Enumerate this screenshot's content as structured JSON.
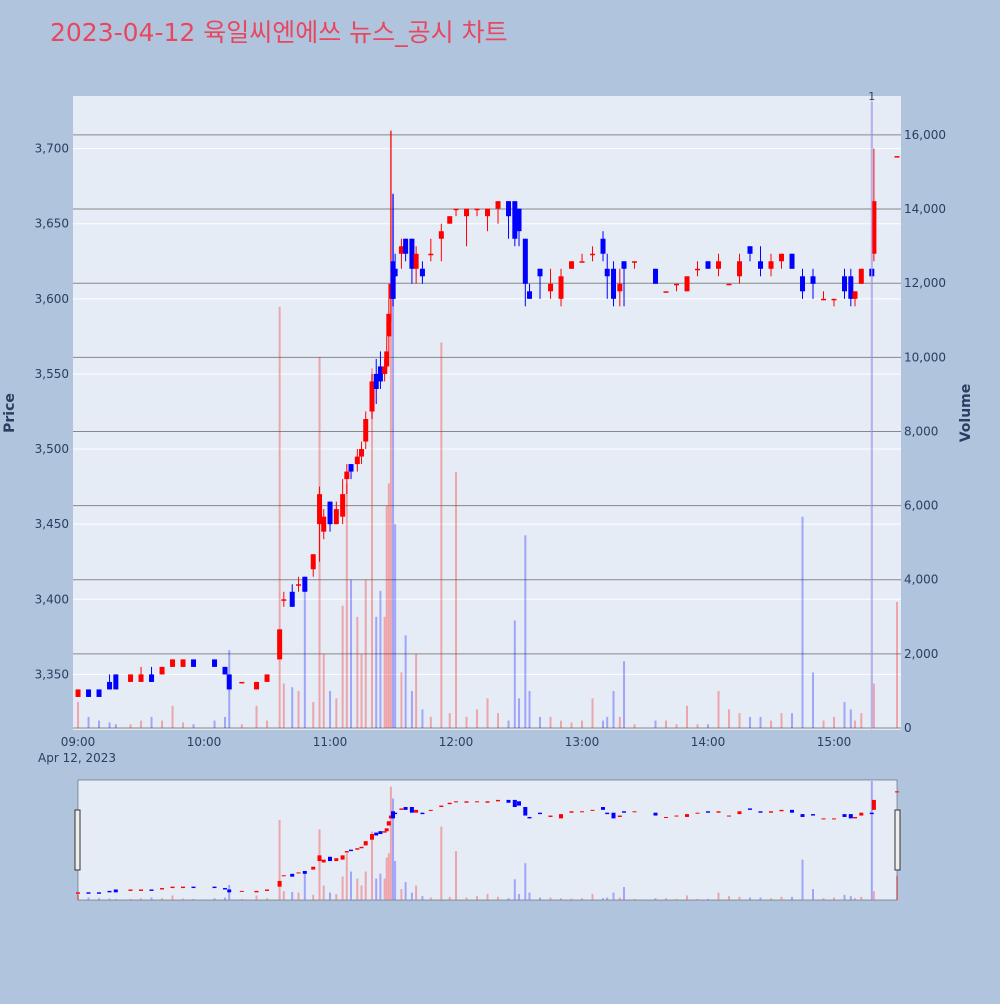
{
  "chart_data": {
    "type": "candlestick",
    "title": "2023-04-12 육일씨엔에쓰 뉴스_공시 차트",
    "y_label": "Price",
    "y2_label": "Volume",
    "x_date_label": "Apr 12, 2023",
    "increasing_color": "#ff0000",
    "decreasing_color": "#0000ff",
    "xlim": [
      "2023-04-12 08:57:36",
      "2023-04-12 15:31:54"
    ],
    "xticks": [
      {
        "value": "2023-04-12 09:00",
        "label": "09:00"
      },
      {
        "value": "2023-04-12 10:00",
        "label": "10:00"
      },
      {
        "value": "2023-04-12 11:00",
        "label": "11:00"
      },
      {
        "value": "2023-04-12 12:00",
        "label": "12:00"
      },
      {
        "value": "2023-04-12 13:00",
        "label": "13:00"
      },
      {
        "value": "2023-04-12 14:00",
        "label": "14:00"
      },
      {
        "value": "2023-04-12 15:00",
        "label": "15:00"
      }
    ],
    "ylim": [
      3313,
      3735
    ],
    "yticks": [
      {
        "value": 3350,
        "label": "3,350"
      },
      {
        "value": 3400,
        "label": "3,400"
      },
      {
        "value": 3450,
        "label": "3,450"
      },
      {
        "value": 3500,
        "label": "3,500"
      },
      {
        "value": 3550,
        "label": "3,550"
      },
      {
        "value": 3600,
        "label": "3,600"
      },
      {
        "value": 3650,
        "label": "3,650"
      },
      {
        "value": 3700,
        "label": "3,700"
      }
    ],
    "y2lim": [
      -54,
      17050
    ],
    "y2ticks": [
      0,
      {
        "value": 2000,
        "label": "2,000"
      },
      {
        "value": 4000,
        "label": "4,000"
      },
      {
        "value": 6000,
        "label": "6,000"
      },
      {
        "value": 8000,
        "label": "8,000"
      },
      {
        "value": 10000,
        "label": "10,000"
      },
      {
        "value": 12000,
        "label": "12,000"
      },
      {
        "value": 14000,
        "label": "14,000"
      },
      {
        "value": 16000,
        "label": "16,000"
      }
    ],
    "annotations": [
      {
        "x": "2023-04-12 15:18",
        "text": "1"
      }
    ],
    "x": [
      "2023-04-12 09:00",
      "2023-04-12 09:05",
      "2023-04-12 09:10",
      "2023-04-12 09:15",
      "2023-04-12 09:18",
      "2023-04-12 09:25",
      "2023-04-12 09:30",
      "2023-04-12 09:35",
      "2023-04-12 09:40",
      "2023-04-12 09:45",
      "2023-04-12 09:50",
      "2023-04-12 09:55",
      "2023-04-12 10:05",
      "2023-04-12 10:10",
      "2023-04-12 10:12",
      "2023-04-12 10:18",
      "2023-04-12 10:25",
      "2023-04-12 10:30",
      "2023-04-12 10:36",
      "2023-04-12 10:38",
      "2023-04-12 10:42",
      "2023-04-12 10:45",
      "2023-04-12 10:48",
      "2023-04-12 10:52",
      "2023-04-12 10:55",
      "2023-04-12 10:57",
      "2023-04-12 11:00",
      "2023-04-12 11:03",
      "2023-04-12 11:06",
      "2023-04-12 11:08",
      "2023-04-12 11:10",
      "2023-04-12 11:13",
      "2023-04-12 11:15",
      "2023-04-12 11:17",
      "2023-04-12 11:20",
      "2023-04-12 11:22",
      "2023-04-12 11:24",
      "2023-04-12 11:26",
      "2023-04-12 11:27",
      "2023-04-12 11:28",
      "2023-04-12 11:29",
      "2023-04-12 11:30",
      "2023-04-12 11:31",
      "2023-04-12 11:34",
      "2023-04-12 11:36",
      "2023-04-12 11:39",
      "2023-04-12 11:41",
      "2023-04-12 11:44",
      "2023-04-12 11:48",
      "2023-04-12 11:53",
      "2023-04-12 11:57",
      "2023-04-12 12:00",
      "2023-04-12 12:05",
      "2023-04-12 12:10",
      "2023-04-12 12:15",
      "2023-04-12 12:20",
      "2023-04-12 12:25",
      "2023-04-12 12:28",
      "2023-04-12 12:30",
      "2023-04-12 12:33",
      "2023-04-12 12:35",
      "2023-04-12 12:40",
      "2023-04-12 12:45",
      "2023-04-12 12:50",
      "2023-04-12 12:55",
      "2023-04-12 13:00",
      "2023-04-12 13:05",
      "2023-04-12 13:10",
      "2023-04-12 13:12",
      "2023-04-12 13:15",
      "2023-04-12 13:18",
      "2023-04-12 13:20",
      "2023-04-12 13:25",
      "2023-04-12 13:35",
      "2023-04-12 13:40",
      "2023-04-12 13:45",
      "2023-04-12 13:50",
      "2023-04-12 13:55",
      "2023-04-12 14:00",
      "2023-04-12 14:05",
      "2023-04-12 14:10",
      "2023-04-12 14:15",
      "2023-04-12 14:20",
      "2023-04-12 14:25",
      "2023-04-12 14:30",
      "2023-04-12 14:35",
      "2023-04-12 14:40",
      "2023-04-12 14:45",
      "2023-04-12 14:50",
      "2023-04-12 14:55",
      "2023-04-12 15:00",
      "2023-04-12 15:05",
      "2023-04-12 15:08",
      "2023-04-12 15:10",
      "2023-04-12 15:13",
      "2023-04-12 15:18",
      "2023-04-12 15:19",
      "2023-04-12 15:30"
    ],
    "open": [
      3335,
      3340,
      3340,
      3345,
      3350,
      3345,
      3345,
      3350,
      3350,
      3355,
      3355,
      3360,
      3360,
      3355,
      3350,
      3345,
      3340,
      3345,
      3360,
      3400,
      3405,
      3410,
      3415,
      3420,
      3450,
      3445,
      3465,
      3450,
      3455,
      3480,
      3490,
      3490,
      3495,
      3505,
      3525,
      3550,
      3555,
      3550,
      3555,
      3575,
      3600,
      3625,
      3620,
      3630,
      3640,
      3640,
      3620,
      3620,
      3630,
      3640,
      3650,
      3660,
      3655,
      3660,
      3655,
      3660,
      3665,
      3665,
      3660,
      3640,
      3605,
      3620,
      3605,
      3600,
      3620,
      3625,
      3630,
      3640,
      3620,
      3620,
      3605,
      3625,
      3625,
      3620,
      3605,
      3610,
      3605,
      3620,
      3625,
      3620,
      3610,
      3615,
      3635,
      3625,
      3620,
      3625,
      3630,
      3615,
      3615,
      3600,
      3600,
      3615,
      3615,
      3600,
      3610,
      3620,
      3630,
      3695
    ],
    "high": [
      3340,
      3340,
      3340,
      3350,
      3350,
      3350,
      3355,
      3355,
      3355,
      3360,
      3360,
      3360,
      3360,
      3355,
      3350,
      3345,
      3345,
      3350,
      3380,
      3405,
      3410,
      3415,
      3415,
      3430,
      3475,
      3460,
      3465,
      3465,
      3480,
      3490,
      3490,
      3500,
      3505,
      3525,
      3550,
      3560,
      3565,
      3560,
      3575,
      3600,
      3712,
      3670,
      3630,
      3640,
      3640,
      3640,
      3635,
      3625,
      3640,
      3650,
      3655,
      3660,
      3660,
      3660,
      3660,
      3665,
      3665,
      3665,
      3660,
      3640,
      3610,
      3620,
      3620,
      3620,
      3625,
      3630,
      3635,
      3645,
      3630,
      3625,
      3620,
      3625,
      3625,
      3620,
      3605,
      3610,
      3615,
      3625,
      3625,
      3630,
      3610,
      3630,
      3635,
      3635,
      3630,
      3630,
      3630,
      3620,
      3620,
      3605,
      3600,
      3620,
      3620,
      3605,
      3620,
      3620,
      3700,
      3695
    ],
    "low": [
      3335,
      3335,
      3335,
      3340,
      3340,
      3345,
      3345,
      3345,
      3350,
      3355,
      3355,
      3355,
      3355,
      3350,
      3340,
      3345,
      3340,
      3345,
      3360,
      3395,
      3395,
      3405,
      3405,
      3415,
      3425,
      3440,
      3445,
      3450,
      3450,
      3470,
      3480,
      3485,
      3490,
      3500,
      3520,
      3530,
      3540,
      3545,
      3550,
      3565,
      3585,
      3595,
      3600,
      3620,
      3625,
      3610,
      3610,
      3610,
      3625,
      3625,
      3650,
      3655,
      3635,
      3655,
      3645,
      3650,
      3640,
      3635,
      3635,
      3595,
      3600,
      3600,
      3600,
      3595,
      3620,
      3625,
      3625,
      3625,
      3600,
      3595,
      3595,
      3595,
      3620,
      3610,
      3605,
      3605,
      3605,
      3615,
      3620,
      3615,
      3610,
      3610,
      3625,
      3615,
      3615,
      3620,
      3620,
      3600,
      3600,
      3600,
      3595,
      3600,
      3595,
      3595,
      3610,
      3615,
      3625,
      3695
    ],
    "close": [
      3340,
      3335,
      3335,
      3340,
      3340,
      3350,
      3350,
      3345,
      3355,
      3360,
      3360,
      3355,
      3355,
      3350,
      3340,
      3345,
      3345,
      3350,
      3380,
      3400,
      3395,
      3410,
      3405,
      3430,
      3470,
      3455,
      3450,
      3460,
      3470,
      3485,
      3485,
      3495,
      3500,
      3520,
      3545,
      3540,
      3545,
      3555,
      3565,
      3590,
      3610,
      3600,
      3615,
      3635,
      3630,
      3620,
      3630,
      3615,
      3630,
      3645,
      3655,
      3660,
      3660,
      3660,
      3660,
      3665,
      3655,
      3640,
      3645,
      3610,
      3600,
      3615,
      3610,
      3615,
      3625,
      3625,
      3630,
      3630,
      3615,
      3600,
      3610,
      3620,
      3625,
      3610,
      3605,
      3610,
      3615,
      3620,
      3620,
      3625,
      3610,
      3625,
      3630,
      3620,
      3625,
      3630,
      3620,
      3605,
      3610,
      3600,
      3600,
      3605,
      3600,
      3605,
      3620,
      3615,
      3665,
      3695
    ],
    "volume": [
      700,
      300,
      200,
      150,
      100,
      100,
      200,
      300,
      200,
      600,
      150,
      100,
      200,
      300,
      2100,
      100,
      600,
      200,
      11360,
      1200,
      1100,
      1000,
      3670,
      700,
      10010,
      2000,
      1000,
      800,
      3300,
      6600,
      4000,
      3000,
      2000,
      4000,
      9700,
      3000,
      3700,
      3000,
      6000,
      6600,
      16100,
      14400,
      5500,
      1500,
      2500,
      1000,
      2000,
      500,
      300,
      10400,
      400,
      6900,
      300,
      500,
      800,
      400,
      200,
      2900,
      800,
      5200,
      1000,
      300,
      300,
      200,
      150,
      200,
      800,
      200,
      300,
      1000,
      300,
      1800,
      100,
      200,
      200,
      100,
      600,
      100,
      100,
      1000,
      500,
      400,
      300,
      300,
      200,
      400,
      400,
      5700,
      1500,
      200,
      300,
      700,
      500,
      200,
      400,
      16900,
      1200,
      3400
    ]
  }
}
